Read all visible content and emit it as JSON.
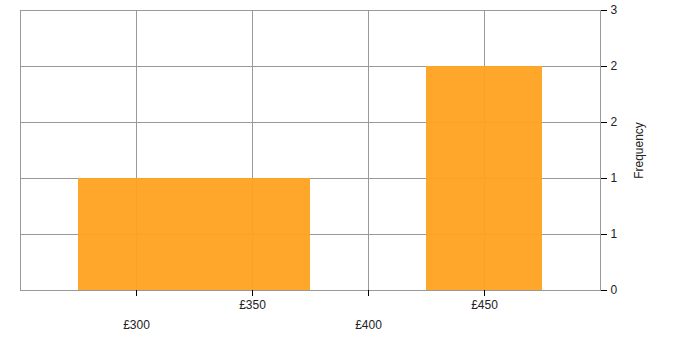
{
  "chart_data": {
    "type": "histogram",
    "bins": [
      275,
      325,
      375,
      425,
      475
    ],
    "counts": [
      1,
      1,
      0,
      2
    ],
    "color": "#ffa21f",
    "xlim": [
      250,
      500
    ],
    "xticks": [
      {
        "value": 300,
        "label": "£300"
      },
      {
        "value": 350,
        "label": "£350"
      },
      {
        "value": 400,
        "label": "£400"
      },
      {
        "value": 450,
        "label": "£450"
      }
    ],
    "ylim": [
      0,
      2.5
    ],
    "yticks": [
      0,
      {
        "value": 0.5,
        "label": "1"
      },
      1,
      {
        "value": 1.5,
        "label": "2"
      },
      2,
      {
        "value": 2.5,
        "label": "3"
      }
    ],
    "y_label": "Frequency",
    "grid": true
  }
}
